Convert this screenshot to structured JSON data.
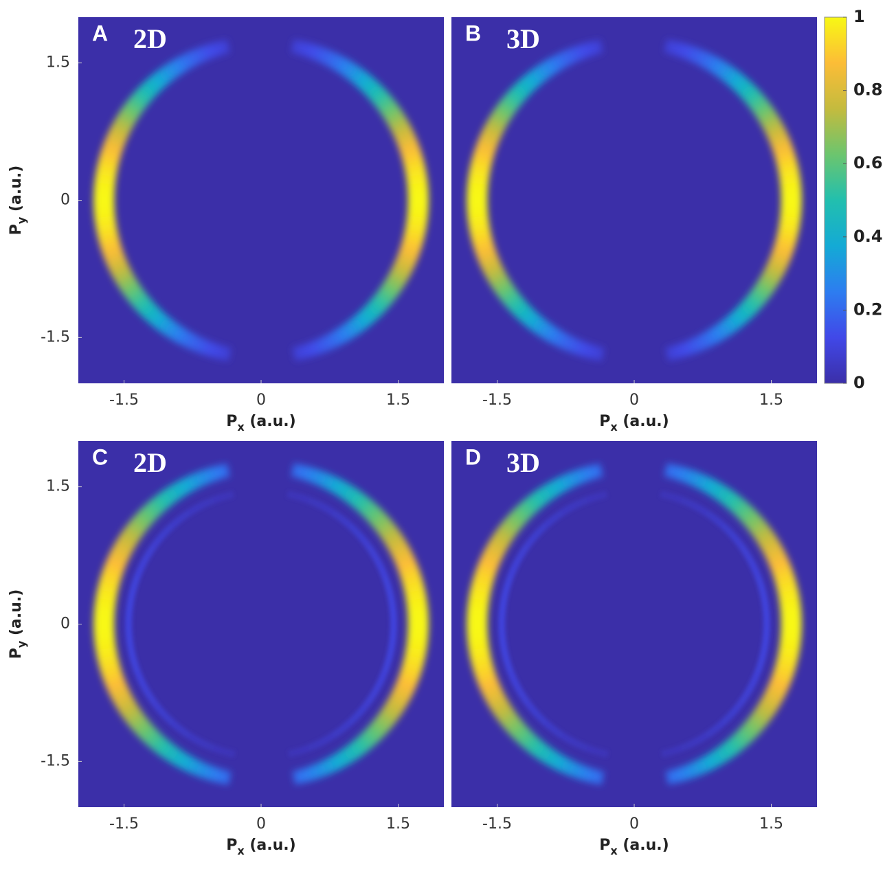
{
  "chart_data": [
    {
      "type": "heatmap",
      "label": "A",
      "annotation": "2D",
      "xlabel": [
        "P",
        "x",
        " (a.u.)"
      ],
      "ylabel": [
        "P",
        "y",
        " (a.u.)"
      ],
      "xlim": [
        -2,
        2
      ],
      "ylim": [
        -2,
        2
      ],
      "xticks": [
        -1.5,
        0,
        1.5
      ],
      "yticks": [
        -1.5,
        0,
        1.5
      ],
      "rings": [
        {
          "radius": 1.72,
          "peak": 1
        }
      ]
    },
    {
      "type": "heatmap",
      "label": "B",
      "annotation": "3D",
      "xlabel": [
        "P",
        "x",
        " (a.u.)"
      ],
      "xlim": [
        -2,
        2
      ],
      "ylim": [
        -2,
        2
      ],
      "xticks": [
        -1.5,
        0,
        1.5
      ],
      "rings": [
        {
          "radius": 1.72,
          "peak": 1
        }
      ]
    },
    {
      "type": "heatmap",
      "label": "C",
      "annotation": "2D",
      "xlabel": [
        "P",
        "x",
        " (a.u.)"
      ],
      "ylabel": [
        "P",
        "y",
        " (a.u.)"
      ],
      "xlim": [
        -2,
        2
      ],
      "ylim": [
        -2,
        2
      ],
      "xticks": [
        -1.5,
        0,
        1.5
      ],
      "yticks": [
        -1.5,
        0,
        1.5
      ],
      "rings": [
        {
          "radius": 1.72,
          "peak": 1
        },
        {
          "radius": 1.45,
          "peak": 0.1
        }
      ]
    },
    {
      "type": "heatmap",
      "label": "D",
      "annotation": "3D",
      "xlabel": [
        "P",
        "x",
        " (a.u.)"
      ],
      "xlim": [
        -2,
        2
      ],
      "ylim": [
        -2,
        2
      ],
      "xticks": [
        -1.5,
        0,
        1.5
      ],
      "rings": [
        {
          "radius": 1.72,
          "peak": 1
        },
        {
          "radius": 1.45,
          "peak": 0.1
        }
      ]
    },
    {
      "type": "colorbar",
      "zlim": [
        0,
        1
      ],
      "zticks": [
        0,
        0.2,
        0.4,
        0.6,
        0.8,
        1
      ],
      "colormap": [
        "#3b2fa8",
        "#4148e8",
        "#2d7df0",
        "#14aad5",
        "#22bfae",
        "#6cc56e",
        "#c4bb3e",
        "#fcbd37",
        "#f8f814"
      ]
    }
  ]
}
